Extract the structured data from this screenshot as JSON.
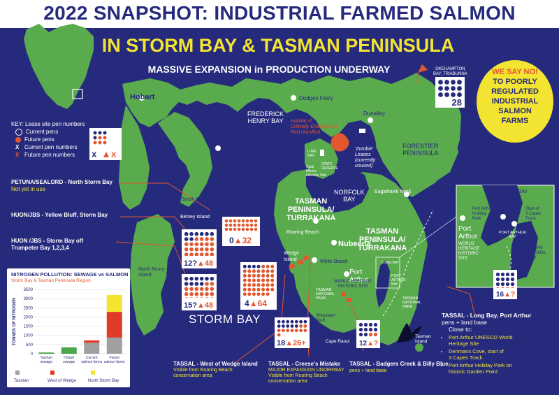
{
  "title_line1": "2022 SNAPSHOT: INDUSTRIAL FARMED SALMON",
  "title_line2": "IN STORM BAY & TASMAN PENINSULA",
  "title_line3": "MASSIVE EXPANSION in PRODUCTION UNDERWAY",
  "colors": {
    "navy": "#262a7c",
    "land": "#5aaa4e",
    "yellow": "#f2e430",
    "red": "#e2572e",
    "grey": "#a0a0a0"
  },
  "key": {
    "title": "KEY: Lease site pen numbers",
    "items": [
      "Current pens",
      "Future pens",
      "Current pen numbers",
      "Future pen numbers"
    ],
    "sample_symbols": [
      "X",
      "X"
    ]
  },
  "callout": {
    "line1": "WE SAY NO!",
    "line2": "TO POORLY",
    "line3": "REGULATED",
    "line4": "INDUSTRIAL",
    "line5": "SALMON",
    "line6": "FARMS"
  },
  "places": {
    "hobart": "Hobart",
    "dodges_ferry": "Dodges Ferry",
    "frederick": "FREDERICK\nHENRY BAY",
    "dunalley": "Dunalley",
    "forestier": "FORESTIER\nPENINSULA",
    "habitat": "Habitat of\nCritically Endangered\nRed Handfish",
    "zombie": "'Zombie'\nLeases\n(currently\nunused)",
    "clifton": "Clifton\nBeach",
    "lime_bay": "LIME\nBAY",
    "state_reserve": "STATE\nRESERVE",
    "coal_mines": "Coal\nMines\nHistoric Site",
    "norfolk": "NORFOLK\nBAY",
    "eaglehawk": "Eaglehawk Neck",
    "south_arm": "South Arm",
    "tasman_pen_1": "TASMAN\nPENINSULA/\nTURRAKANA",
    "tasman_pen_2": "TASMAN\nPENINSULA/\nTURRAKANA",
    "betsey": "Betsey Island",
    "roaring": "Roaring Beach",
    "nubeena": "Nubeena",
    "wedge": "Wedge\nIsland",
    "white_beach": "White Beach",
    "port_arthur": "Port\nArthur",
    "pa_site": "WORLD HERITAGE\nHISTORIC SITE",
    "long_bay": "LONG BAY",
    "port_arthur_bay": "PORT\nARTHUR\nBAY",
    "tasman_np_1": "TASMAN\nNATIONAL\nPARK",
    "tasman_np_2": "TASMAN\nNATIONAL\nPARK",
    "shipstern": "Shipstern\nBluff",
    "cape_raoul": "Cape Raoul",
    "tasman_island": "Tasman\nIsland",
    "north_bruny": "North Bruny\nIsland",
    "storm_bay": "STORM BAY",
    "okehampton": "OKEHAMPTON\nBAY, TRIABUNNA",
    "inset_long_bay": "LONG BAY",
    "inset_pa_holiday": "Port Arthur\nHoliday\nPark",
    "inset_capes": "Start of\n3 Capes\nTrack",
    "inset_pa": "Port\nArthur",
    "inset_whhs": "WORLD\nHERITAGE\nHISTORIC\nSITE",
    "inset_pab": "PORT ARTHUR\nBAY",
    "inset_tnp": "TASMAN\nNATIONAL\nPARK"
  },
  "lease_notes": {
    "petuna_t": "PETUNA/SEALORD - North Storm Bay",
    "petuna_s": "Not yet in use",
    "huon_yb": "HUON/JBS - Yellow Bluff, Storm Bay",
    "huon_off_t": "HUON /JBS - Storm Bay off",
    "huon_off_s": "Trumpeter Bay 1,2,3,4",
    "wedge_t": "TASSAL - West of Wedge Island",
    "wedge_s": "Visible from Roaring Beach\nconservation area",
    "creese_t": "TASSAL - Creese's Mistake",
    "creese_u": "MAJOR EXPANSION UNDERWAY",
    "creese_s": "Visible from Roaring Beach\nconservation area",
    "badgers_t": "TASSAL - Badgers Creek & Billy Blue",
    "badgers_s": "pens + land base"
  },
  "counts": {
    "okehampton": "28",
    "petuna_cur": "0",
    "petuna_fut": "32",
    "yb_cur": "12?",
    "yb_fut": "48",
    "trumpeter_cur": "15?",
    "trumpeter_fut": "48",
    "wedge_cur": "4",
    "wedge_fut": "64",
    "creese_cur": "18",
    "creese_fut": "26+",
    "badgers_cur": "12",
    "badgers_fut": "?",
    "longbay_cur": "16",
    "longbay_fut": "?"
  },
  "tassal_long_bay": {
    "title": "TASSAL - Long Bay, Port Arthur",
    "sub": "pens + land base",
    "close": "Close to:",
    "items": [
      "Port Arthur UNESCO World\nHeritage Site",
      "Denmans Cove, start of\n3 Capes Track",
      "Port Arthur Holiday Park on\nhistoric Garden Point"
    ]
  },
  "chart_data": {
    "type": "bar",
    "title": "NITROGEN POLLUTION: SEWAGE vs SALMON",
    "subtitle": "Storm Bay & Tasman Peninsula Region",
    "ylabel": "TONNES OF NITROGEN",
    "ylim": [
      0,
      3500
    ],
    "yticks": [
      0,
      500,
      1000,
      1500,
      2000,
      2500,
      3000,
      3500
    ],
    "categories": [
      "Tasman\nsewage",
      "Hobart\nsewage",
      "Current\nsalmon farms",
      "Future\nsalmon farms"
    ],
    "stacked": true,
    "series": [
      {
        "name": "Tasman",
        "color": "#a0a0a0",
        "values": [
          0,
          0,
          600,
          880
        ]
      },
      {
        "name": "West of Wedge",
        "color": "#e03a2a",
        "values": [
          0,
          0,
          130,
          1400
        ]
      },
      {
        "name": "North Storm Bay",
        "color": "#f2e430",
        "values": [
          0,
          0,
          0,
          920
        ]
      },
      {
        "name": "",
        "color": "#4aa84a",
        "values": [
          70,
          350,
          0,
          0
        ]
      }
    ],
    "legend": [
      "Tasman",
      "West of Wedge",
      "North Storm Bay"
    ],
    "legend_position": "bottom"
  }
}
